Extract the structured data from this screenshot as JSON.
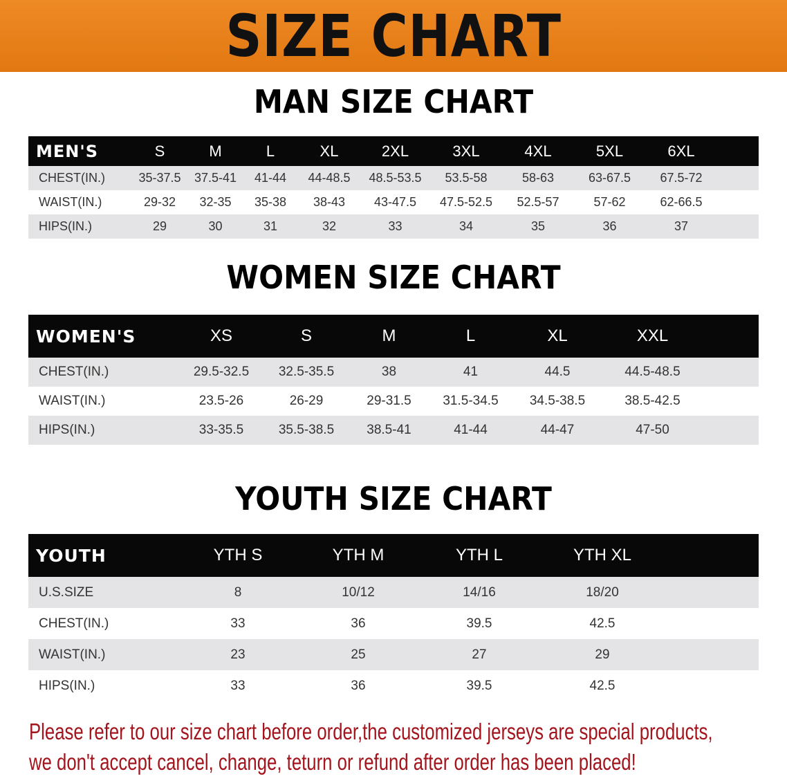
{
  "banner_title": "SIZE CHART",
  "men": {
    "title": "MAN SIZE CHART",
    "header": [
      "MEN'S",
      "S",
      "M",
      "L",
      "XL",
      "2XL",
      "3XL",
      "4XL",
      "5XL",
      "6XL"
    ],
    "rows": [
      [
        "CHEST(IN.)",
        "35-37.5",
        "37.5-41",
        "41-44",
        "44-48.5",
        "48.5-53.5",
        "53.5-58",
        "58-63",
        "63-67.5",
        "67.5-72"
      ],
      [
        "WAIST(IN.)",
        "29-32",
        "32-35",
        "35-38",
        "38-43",
        "43-47.5",
        "47.5-52.5",
        "52.5-57",
        "57-62",
        "62-66.5"
      ],
      [
        "HIPS(IN.)",
        "29",
        "30",
        "31",
        "32",
        "33",
        "34",
        "35",
        "36",
        "37"
      ]
    ]
  },
  "women": {
    "title": "WOMEN SIZE CHART",
    "header": [
      "WOMEN'S",
      "XS",
      "S",
      "M",
      "L",
      "XL",
      "XXL"
    ],
    "rows": [
      [
        "CHEST(IN.)",
        "29.5-32.5",
        "32.5-35.5",
        "38",
        "41",
        "44.5",
        "44.5-48.5"
      ],
      [
        "WAIST(IN.)",
        "23.5-26",
        "26-29",
        "29-31.5",
        "31.5-34.5",
        "34.5-38.5",
        "38.5-42.5"
      ],
      [
        "HIPS(IN.)",
        "33-35.5",
        "35.5-38.5",
        "38.5-41",
        "41-44",
        "44-47",
        "47-50"
      ]
    ]
  },
  "youth": {
    "title": "YOUTH SIZE CHART",
    "header": [
      "YOUTH",
      "YTH S",
      "YTH M",
      "YTH L",
      "YTH XL"
    ],
    "rows": [
      [
        "U.S.SIZE",
        "8",
        "10/12",
        "14/16",
        "18/20"
      ],
      [
        "CHEST(IN.)",
        "33",
        "36",
        "39.5",
        "42.5"
      ],
      [
        "WAIST(IN.)",
        "23",
        "25",
        "27",
        "29"
      ],
      [
        "HIPS(IN.)",
        "33",
        "36",
        "39.5",
        "42.5"
      ]
    ]
  },
  "note": {
    "line1": "Please refer to our size chart before order,the customized jerseys are special products,",
    "line2": "we don't accept cancel, change, teturn or refund after order has been placed!"
  },
  "colors": {
    "banner": "#e8801a",
    "header_row": "#080808",
    "stripe": "#e4e4e6",
    "note": "#a3141c"
  }
}
